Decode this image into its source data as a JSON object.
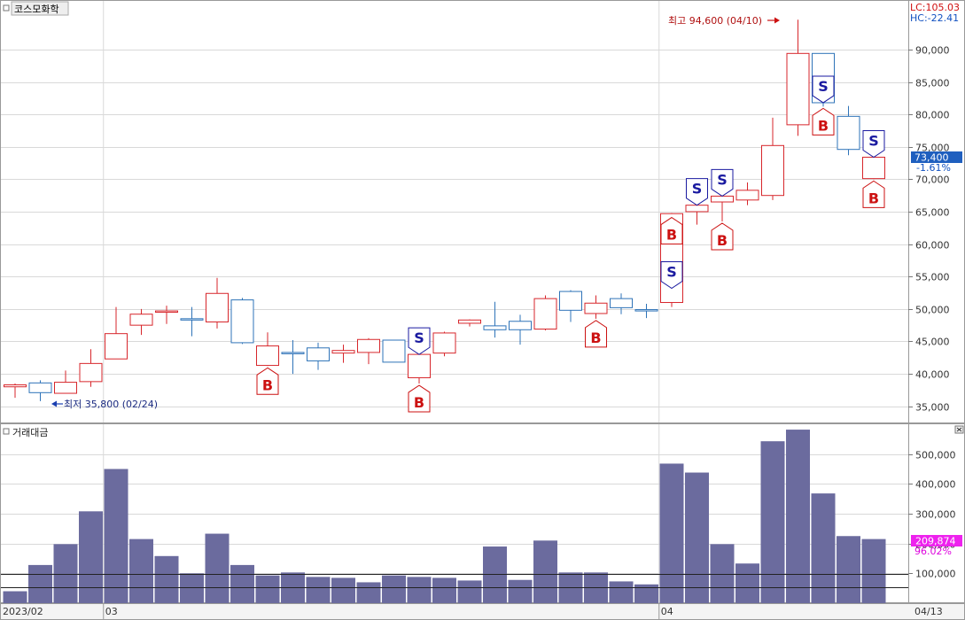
{
  "stock_name": "코스모화학",
  "lc_label": "LC:105.03",
  "hc_label": "HC:-22.41",
  "price_label": "73,400",
  "change_label": "-1.61%",
  "volume_panel_title": "거래대금",
  "volume_value_label": "209,874",
  "volume_pct_label": "96.02%",
  "high_annotation": "최고 94,600 (04/10)",
  "low_annotation": "최저 35,800 (02/24)",
  "x_labels": [
    "2023/02",
    "03",
    "04",
    "04/13"
  ],
  "colors": {
    "up": "#d7262b",
    "down": "#2e73b8",
    "volume_bar": "#6b6b9e",
    "buy_marker": "#cc1111",
    "sell_marker": "#1a1aa0",
    "price_tag_bg": "#1f5fbf",
    "volume_tag_bg": "#ee22ee",
    "grid": "#d9d9d9",
    "lc_text": "#d01010",
    "hc_text": "#1050c0"
  },
  "chart_data": [
    {
      "type": "candlestick",
      "title": "코스모화학",
      "y_ticks": [
        35000,
        40000,
        45000,
        50000,
        55000,
        60000,
        65000,
        70000,
        75000,
        80000,
        85000,
        90000
      ],
      "ylim": [
        32500,
        97500
      ],
      "grid": true,
      "candles": [
        {
          "o": 38000,
          "h": 38500,
          "l": 36300,
          "c": 38300
        },
        {
          "o": 38600,
          "h": 39000,
          "l": 35800,
          "c": 37100
        },
        {
          "o": 37000,
          "h": 40500,
          "l": 37000,
          "c": 38700
        },
        {
          "o": 38800,
          "h": 43800,
          "l": 38000,
          "c": 41600
        },
        {
          "o": 42300,
          "h": 50300,
          "l": 42300,
          "c": 46200
        },
        {
          "o": 47500,
          "h": 50000,
          "l": 46000,
          "c": 49200
        },
        {
          "o": 49500,
          "h": 50500,
          "l": 47700,
          "c": 49700
        },
        {
          "o": 48500,
          "h": 50300,
          "l": 45800,
          "c": 48300
        },
        {
          "o": 48000,
          "h": 54800,
          "l": 47000,
          "c": 52400
        },
        {
          "o": 51400,
          "h": 51700,
          "l": 44600,
          "c": 44800
        },
        {
          "o": 41300,
          "h": 46400,
          "l": 41200,
          "c": 44300
        },
        {
          "o": 43300,
          "h": 45200,
          "l": 40000,
          "c": 43200
        },
        {
          "o": 44000,
          "h": 44800,
          "l": 40600,
          "c": 42000
        },
        {
          "o": 43200,
          "h": 44500,
          "l": 41700,
          "c": 43600
        },
        {
          "o": 43300,
          "h": 45500,
          "l": 41500,
          "c": 45300
        },
        {
          "o": 45200,
          "h": 45200,
          "l": 41800,
          "c": 41800
        },
        {
          "o": 39400,
          "h": 43000,
          "l": 38500,
          "c": 43000
        },
        {
          "o": 43200,
          "h": 46500,
          "l": 42700,
          "c": 46300
        },
        {
          "o": 47800,
          "h": 48400,
          "l": 47300,
          "c": 48300
        },
        {
          "o": 47400,
          "h": 51100,
          "l": 45600,
          "c": 46800
        },
        {
          "o": 48100,
          "h": 49100,
          "l": 44500,
          "c": 46800
        },
        {
          "o": 46900,
          "h": 52100,
          "l": 46700,
          "c": 51600
        },
        {
          "o": 52700,
          "h": 52900,
          "l": 48000,
          "c": 49800
        },
        {
          "o": 49300,
          "h": 52100,
          "l": 48500,
          "c": 50900
        },
        {
          "o": 51600,
          "h": 52400,
          "l": 49200,
          "c": 50200
        },
        {
          "o": 49900,
          "h": 50800,
          "l": 48600,
          "c": 49700
        },
        {
          "o": 51000,
          "h": 64800,
          "l": 50300,
          "c": 64700
        },
        {
          "o": 65000,
          "h": 67000,
          "l": 63000,
          "c": 66000
        },
        {
          "o": 66500,
          "h": 68000,
          "l": 63500,
          "c": 67400
        },
        {
          "o": 66800,
          "h": 69500,
          "l": 66000,
          "c": 68300
        },
        {
          "o": 67500,
          "h": 79500,
          "l": 66800,
          "c": 75200
        },
        {
          "o": 78400,
          "h": 94600,
          "l": 76700,
          "c": 89400
        },
        {
          "o": 89400,
          "h": 89400,
          "l": 81200,
          "c": 81800
        },
        {
          "o": 79700,
          "h": 81300,
          "l": 73700,
          "c": 74600
        },
        {
          "o": 70100,
          "h": 75900,
          "l": 70000,
          "c": 73400
        }
      ],
      "buy_signals": [
        10,
        16,
        23,
        26,
        28,
        32,
        34
      ],
      "sell_signals": [
        16,
        26,
        27,
        28,
        32,
        34
      ]
    },
    {
      "type": "bar",
      "title": "거래대금",
      "y_ticks": [
        100000,
        200000,
        300000,
        400000,
        500000
      ],
      "ylim": [
        0,
        600000
      ],
      "reference_lines": [
        97000,
        52000
      ],
      "values": [
        40000,
        128000,
        198000,
        308000,
        450000,
        215000,
        158000,
        100000,
        233000,
        128000,
        93000,
        103000,
        88000,
        85000,
        70000,
        93000,
        88000,
        85000,
        76000,
        190000,
        78000,
        210000,
        103000,
        103000,
        73000,
        63000,
        468000,
        438000,
        198000,
        133000,
        543000,
        582000,
        368000,
        225000,
        215000
      ]
    }
  ]
}
